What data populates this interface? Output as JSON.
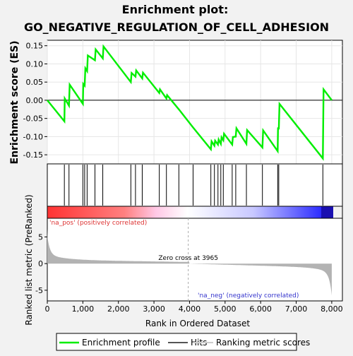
{
  "chart_data": {
    "type": "line",
    "title_line1": "Enrichment plot:",
    "title_line2": "GO_NEGATIVE_REGULATION_OF_CELL_ADHESION",
    "ylabel_top": "Enrichment score (ES)",
    "ylabel_bottom": "Ranked list metric (PreRanked)",
    "xlabel": "Rank in Ordered Dataset",
    "x_range": [
      0,
      8300
    ],
    "x_ticks": [
      "0",
      "1,000",
      "2,000",
      "3,000",
      "4,000",
      "5,000",
      "6,000",
      "7,000",
      "8,000"
    ],
    "x_tick_values": [
      0,
      1000,
      2000,
      3000,
      4000,
      5000,
      6000,
      7000,
      8000
    ],
    "es_range": [
      -0.175,
      0.165
    ],
    "es_ticks": [
      "0.15",
      "0.10",
      "0.05",
      "0.00",
      "-0.05",
      "-0.10",
      "-0.15"
    ],
    "es_tick_values": [
      0.15,
      0.1,
      0.05,
      0.0,
      -0.05,
      -0.1,
      -0.15
    ],
    "metric_range": [
      -7,
      8.5
    ],
    "metric_ticks": [
      "5",
      "0",
      "-5"
    ],
    "metric_tick_values": [
      5,
      0,
      -5
    ],
    "enrichment_profile": {
      "x": [
        0,
        480,
        490,
        610,
        630,
        1000,
        1010,
        1050,
        1070,
        1120,
        1140,
        1340,
        1360,
        1560,
        1580,
        2350,
        2370,
        2480,
        2500,
        2670,
        2690,
        3150,
        3170,
        3350,
        3370,
        3700,
        4100,
        4600,
        4620,
        4700,
        4720,
        4800,
        4820,
        4880,
        4900,
        4950,
        4970,
        5200,
        5220,
        5300,
        5320,
        5600,
        5620,
        6050,
        6070,
        6480,
        6490,
        6510,
        6530,
        7750,
        7770,
        8000
      ],
      "y": [
        0.0,
        -0.058,
        0.005,
        -0.015,
        0.043,
        -0.01,
        0.045,
        0.04,
        0.088,
        0.08,
        0.123,
        0.11,
        0.14,
        0.115,
        0.148,
        0.05,
        0.075,
        0.065,
        0.082,
        0.06,
        0.076,
        0.02,
        0.03,
        0.005,
        0.014,
        -0.025,
        -0.075,
        -0.135,
        -0.113,
        -0.125,
        -0.111,
        -0.122,
        -0.108,
        -0.12,
        -0.102,
        -0.11,
        -0.092,
        -0.122,
        -0.101,
        -0.1,
        -0.077,
        -0.12,
        -0.082,
        -0.13,
        -0.083,
        -0.14,
        -0.075,
        -0.08,
        -0.01,
        -0.16,
        0.03,
        0.0
      ]
    },
    "hits": [
      480,
      610,
      1000,
      1050,
      1120,
      1340,
      1560,
      2350,
      2480,
      2670,
      3150,
      3350,
      3700,
      4100,
      4600,
      4700,
      4800,
      4880,
      4950,
      5200,
      5300,
      5600,
      6050,
      6480,
      6510,
      7750
    ],
    "zero_cross": 3965,
    "zero_cross_label": "Zero cross at 3965",
    "pos_label": "'na_pos' (positively correlated)",
    "neg_label": "'na_neg' (negatively correlated)",
    "colors": {
      "profile": "#00ee00",
      "pos_text": "#dd3333",
      "neg_text": "#3333cc",
      "metric_fill": "#b3b3b3"
    }
  },
  "legend": {
    "profile": "Enrichment profile",
    "hits": "Hits",
    "metric": "Ranking metric scores"
  }
}
